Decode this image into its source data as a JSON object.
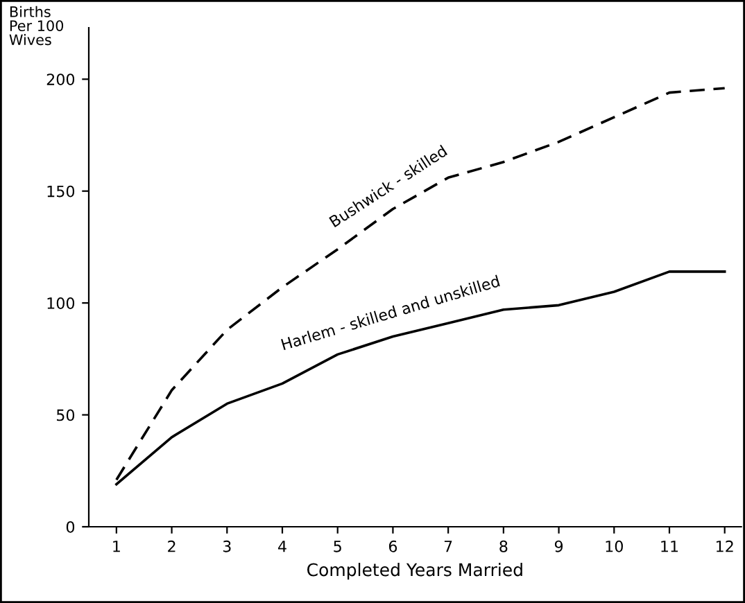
{
  "chart_data": {
    "type": "line",
    "xlabel": "Completed Years Married",
    "ylabel": "Births\nPer 100\nWives",
    "x": [
      1,
      2,
      3,
      4,
      5,
      6,
      7,
      8,
      9,
      10,
      11,
      12
    ],
    "series": [
      {
        "name": "Bushwick - skilled",
        "color": "#000000",
        "line_style": "dashed",
        "values": [
          21,
          61,
          88,
          107,
          124,
          142,
          156,
          163,
          172,
          183,
          194,
          196
        ]
      },
      {
        "name": "Harlem - skilled and unskilled",
        "color": "#000000",
        "line_style": "solid",
        "values": [
          19,
          40,
          55,
          64,
          77,
          85,
          91,
          97,
          99,
          105,
          114,
          114
        ]
      }
    ],
    "xlim": [
      0.5,
      12.3
    ],
    "ylim": [
      0,
      223
    ],
    "xticks": [
      1,
      2,
      3,
      4,
      5,
      6,
      7,
      8,
      9,
      10,
      11,
      12
    ],
    "yticks": [
      0,
      50,
      100,
      150,
      200
    ],
    "grid": false,
    "legend": false,
    "marker": "none"
  }
}
